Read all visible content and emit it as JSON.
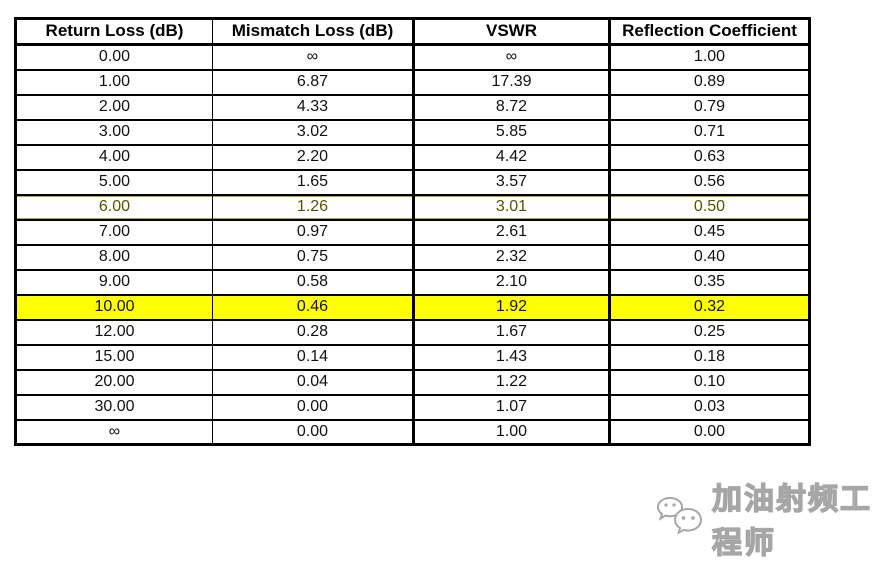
{
  "table": {
    "columns": [
      {
        "label": "Return Loss (dB)"
      },
      {
        "label": "Mismatch Loss (dB)"
      },
      {
        "label": "VSWR"
      },
      {
        "label": "Reflection Coefficient"
      }
    ],
    "rows": [
      {
        "cells": [
          "0.00",
          "∞",
          "∞",
          "1.00"
        ],
        "highlight": "none"
      },
      {
        "cells": [
          "1.00",
          "6.87",
          "17.39",
          "0.89"
        ],
        "highlight": "none"
      },
      {
        "cells": [
          "2.00",
          "4.33",
          "8.72",
          "0.79"
        ],
        "highlight": "none"
      },
      {
        "cells": [
          "3.00",
          "3.02",
          "5.85",
          "0.71"
        ],
        "highlight": "none"
      },
      {
        "cells": [
          "4.00",
          "2.20",
          "4.42",
          "0.63"
        ],
        "highlight": "none"
      },
      {
        "cells": [
          "5.00",
          "1.65",
          "3.57",
          "0.56"
        ],
        "highlight": "none"
      },
      {
        "cells": [
          "6.00",
          "1.26",
          "3.01",
          "0.50"
        ],
        "highlight": "olive"
      },
      {
        "cells": [
          "7.00",
          "0.97",
          "2.61",
          "0.45"
        ],
        "highlight": "none"
      },
      {
        "cells": [
          "8.00",
          "0.75",
          "2.32",
          "0.40"
        ],
        "highlight": "none"
      },
      {
        "cells": [
          "9.00",
          "0.58",
          "2.10",
          "0.35"
        ],
        "highlight": "none"
      },
      {
        "cells": [
          "10.00",
          "0.46",
          "1.92",
          "0.32"
        ],
        "highlight": "yellow"
      },
      {
        "cells": [
          "12.00",
          "0.28",
          "1.67",
          "0.25"
        ],
        "highlight": "none"
      },
      {
        "cells": [
          "15.00",
          "0.14",
          "1.43",
          "0.18"
        ],
        "highlight": "none"
      },
      {
        "cells": [
          "20.00",
          "0.04",
          "1.22",
          "0.10"
        ],
        "highlight": "none"
      },
      {
        "cells": [
          "30.00",
          "0.00",
          "1.07",
          "0.03"
        ],
        "highlight": "none"
      },
      {
        "cells": [
          "∞",
          "0.00",
          "1.00",
          "0.00"
        ],
        "highlight": "none"
      }
    ],
    "colors": {
      "highlight_row_bg": "#FFFF00",
      "olive_text": "#5c5000",
      "border": "#000000"
    }
  },
  "watermark": {
    "icon": "wechat-icon",
    "text": "加油射频工程师",
    "color": "#a6a6a6"
  }
}
